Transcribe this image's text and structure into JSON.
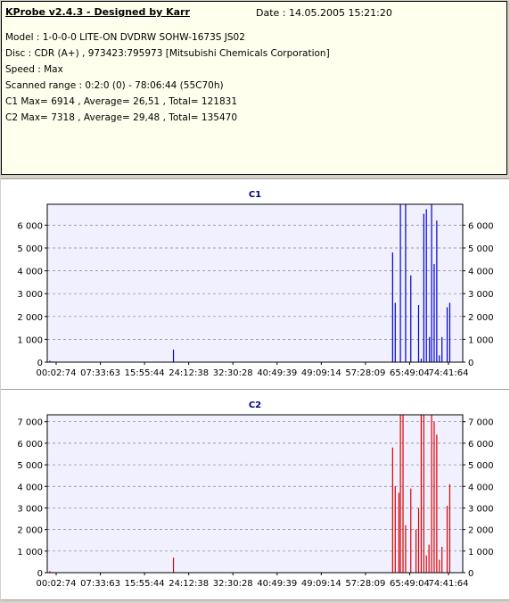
{
  "header": {
    "title": "KProbe v2.4.3 - Designed by Karr",
    "date": "Date : 14.05.2005 15:21:20",
    "lines": [
      "Model : 1-0-0-0 LITE-ON DVDRW SOHW-1673S JS02",
      "Disc : CDR (A+) , 973423:795973 [Mitsubishi Chemicals Corporation]",
      "Speed : Max",
      "Scanned range : 0:2:0 (0) - 78:06:44 (55C70h)",
      "C1 Max= 6914 , Average= 26,51 , Total= 121831",
      "C2 Max= 7318 , Average= 29,48 , Total= 135470"
    ]
  },
  "chart_data": [
    {
      "type": "bar",
      "title": "C1",
      "color": "#0000cc",
      "xlim": [
        0,
        80
      ],
      "ylim": [
        0,
        6914
      ],
      "yticks": [
        0,
        1000,
        2000,
        3000,
        4000,
        5000,
        6000
      ],
      "ytick_labels": [
        "0",
        "1 000",
        "2 000",
        "3 000",
        "4 000",
        "5 000",
        "6 000"
      ],
      "xtick_labels": [
        "00:02:74",
        "07:33:63",
        "15:55:44",
        "24:12:38",
        "32:30:28",
        "40:49:39",
        "49:09:14",
        "57:28:09",
        "65:49:04",
        "74:41:64"
      ],
      "x": [
        0.5,
        1,
        2,
        24.3,
        30,
        40,
        50,
        60,
        66.5,
        67,
        68,
        69,
        70,
        71.5,
        72,
        72.5,
        73,
        73.6,
        74,
        74.5,
        75,
        75.5,
        76,
        77,
        77.5
      ],
      "values": [
        60,
        30,
        20,
        550,
        20,
        20,
        20,
        20,
        4800,
        2600,
        6914,
        6914,
        3800,
        2500,
        150,
        6500,
        6700,
        1100,
        6914,
        4300,
        6200,
        300,
        1100,
        2400,
        2600
      ]
    },
    {
      "type": "bar",
      "title": "C2",
      "color": "#dd0000",
      "xlim": [
        0,
        80
      ],
      "ylim": [
        0,
        7318
      ],
      "yticks": [
        0,
        1000,
        2000,
        3000,
        4000,
        5000,
        6000,
        7000
      ],
      "ytick_labels": [
        "0",
        "1 000",
        "2 000",
        "3 000",
        "4 000",
        "5 000",
        "6 000",
        "7 000"
      ],
      "xtick_labels": [
        "00:02:74",
        "07:33:63",
        "15:55:44",
        "24:12:38",
        "32:30:28",
        "40:49:39",
        "49:09:14",
        "57:28:09",
        "65:49:04",
        "74:41:64"
      ],
      "x": [
        0.5,
        1,
        2,
        24.3,
        30,
        40,
        50,
        60,
        66.5,
        67,
        67.7,
        68,
        68.5,
        69,
        70,
        71,
        71.5,
        72,
        72.5,
        73,
        73.5,
        74,
        74.5,
        75,
        75.5,
        76,
        77,
        77.5
      ],
      "values": [
        70,
        30,
        20,
        700,
        20,
        20,
        20,
        20,
        5800,
        4000,
        3700,
        7318,
        7318,
        2200,
        3900,
        2000,
        3000,
        7318,
        7318,
        800,
        1300,
        7318,
        7000,
        6400,
        600,
        1200,
        3100,
        4100
      ]
    }
  ]
}
